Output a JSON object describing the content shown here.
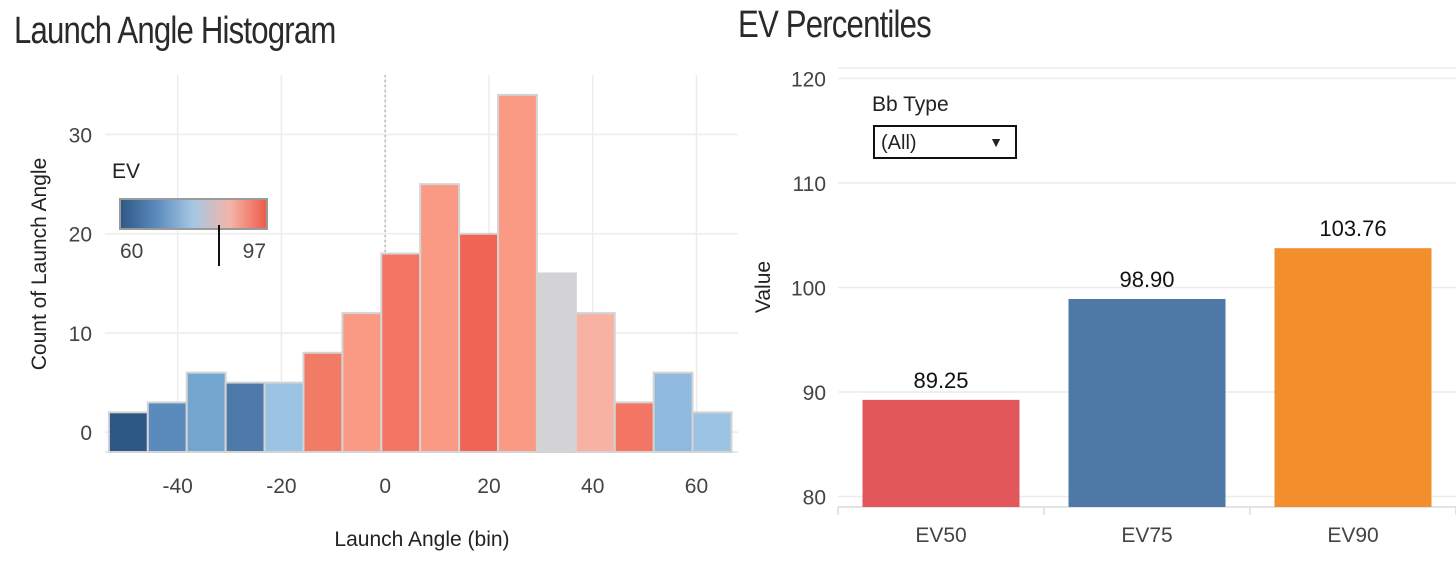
{
  "left": {
    "title": "Launch Angle Histogram",
    "legend_title": "EV",
    "legend_min": "60",
    "legend_max": "97",
    "legend_colors": [
      "#2d5784",
      "#5b8bbd",
      "#a6c8e3",
      "#f4b4a8",
      "#ee5a48"
    ]
  },
  "right": {
    "title": "EV Percentiles",
    "dropdown_label": "Bb Type",
    "dropdown_value": "(All)"
  },
  "chart_data": [
    {
      "type": "bar",
      "title": "Launch Angle Histogram",
      "xlabel": "Launch Angle (bin)",
      "ylabel": "Count of Launch Angle",
      "xlim": [
        -54,
        68
      ],
      "ylim": [
        -2,
        36
      ],
      "xticks": [
        -40,
        -20,
        0,
        20,
        40,
        60
      ],
      "yticks": [
        0,
        10,
        20,
        30
      ],
      "bin_width": 7.5,
      "bins": [
        {
          "x": -49.5,
          "count": 2,
          "color": "#2d5784"
        },
        {
          "x": -42,
          "count": 3,
          "color": "#5b8bbd"
        },
        {
          "x": -34.5,
          "count": 6,
          "color": "#73a6cf"
        },
        {
          "x": -27,
          "count": 5,
          "color": "#4e7aaa"
        },
        {
          "x": -19.5,
          "count": 5,
          "color": "#9ac3e4"
        },
        {
          "x": -12,
          "count": 8,
          "color": "#f27b66"
        },
        {
          "x": -4.5,
          "count": 12,
          "color": "#fb9a84"
        },
        {
          "x": 3,
          "count": 18,
          "color": "#f37563"
        },
        {
          "x": 10.5,
          "count": 25,
          "color": "#fb9a84"
        },
        {
          "x": 18,
          "count": 20,
          "color": "#ef6452"
        },
        {
          "x": 25.5,
          "count": 34,
          "color": "#fb9a84"
        },
        {
          "x": 33,
          "count": 16,
          "color": "#d3d3d6"
        },
        {
          "x": 40.5,
          "count": 12,
          "color": "#f8b2a4"
        },
        {
          "x": 48,
          "count": 3,
          "color": "#f37563"
        },
        {
          "x": 55.5,
          "count": 6,
          "color": "#8fbadd"
        },
        {
          "x": 63,
          "count": 2,
          "color": "#9ac3e4"
        }
      ]
    },
    {
      "type": "bar",
      "title": "EV Percentiles",
      "xlabel": "",
      "ylabel": "Value",
      "ylim": [
        79,
        121
      ],
      "yticks": [
        80,
        90,
        100,
        110,
        120
      ],
      "categories": [
        "EV50",
        "EV75",
        "EV90"
      ],
      "values": [
        89.25,
        98.9,
        103.76
      ],
      "value_labels": [
        "89.25",
        "98.90",
        "103.76"
      ],
      "colors": [
        "#e2575a",
        "#4e79a7",
        "#f28e2b"
      ]
    }
  ]
}
